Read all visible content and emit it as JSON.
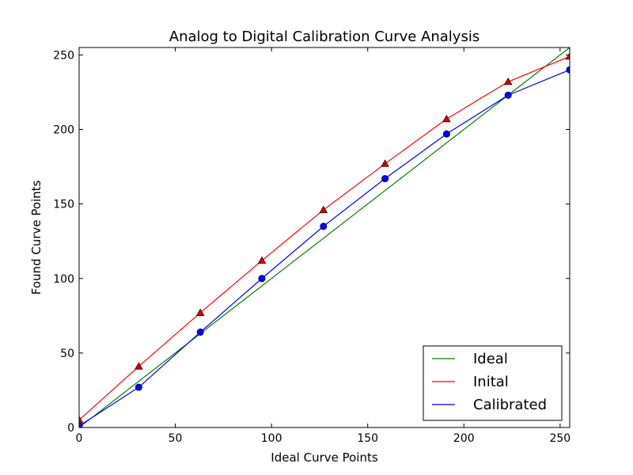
{
  "chart_data": {
    "type": "line",
    "title": "Analog to Digital Calibration Curve Analysis",
    "xlabel": "Ideal Curve Points",
    "ylabel": "Found Curve Points",
    "xlim": [
      0,
      255
    ],
    "ylim": [
      0,
      255
    ],
    "xticks": [
      0,
      50,
      100,
      150,
      200,
      250
    ],
    "yticks": [
      0,
      50,
      100,
      150,
      200,
      250
    ],
    "grid": false,
    "legend_position": "bottom-right",
    "series": [
      {
        "name": "Ideal",
        "color": "#008000",
        "marker": "none",
        "x": [
          0,
          255
        ],
        "y": [
          0,
          255
        ]
      },
      {
        "name": "Inital",
        "color": "#ff0000",
        "marker": "triangle",
        "marker_fill": "#cc0000",
        "x": [
          0,
          31,
          63,
          95,
          127,
          159,
          191,
          223,
          255
        ],
        "y": [
          5,
          41,
          77,
          112,
          146,
          177,
          207,
          232,
          249
        ]
      },
      {
        "name": "Calibrated",
        "color": "#0000ff",
        "marker": "circle",
        "marker_fill": "#0000ff",
        "x": [
          0,
          31,
          63,
          95,
          127,
          159,
          191,
          223,
          255
        ],
        "y": [
          1,
          27,
          64,
          100,
          135,
          167,
          197,
          223,
          240
        ]
      }
    ]
  }
}
